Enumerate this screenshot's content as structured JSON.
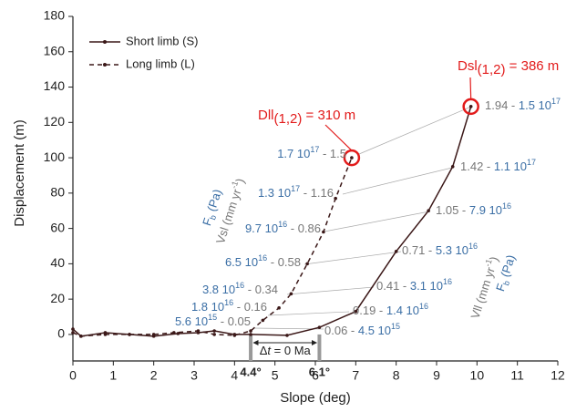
{
  "chart_data": {
    "type": "line",
    "x_label": "Slope (deg)",
    "y_label": "Displacement (m)",
    "xlim": [
      0,
      12
    ],
    "ylim": [
      -15,
      180
    ],
    "xticks": [
      0,
      1,
      2,
      3,
      4,
      5,
      6,
      7,
      8,
      9,
      10,
      11,
      12
    ],
    "yticks": [
      0,
      20,
      40,
      60,
      80,
      100,
      120,
      140,
      160,
      180
    ],
    "legend": "upper left",
    "series": [
      {
        "name": "Short limb (S)",
        "color": "#3b1818",
        "dashed": false,
        "x": [
          0,
          0.2,
          0.8,
          1.4,
          2.0,
          2.6,
          3.1,
          3.5,
          4.0,
          4.4,
          5.3,
          6.1,
          7.0,
          8.0,
          8.8,
          9.4,
          9.85
        ],
        "values": [
          3,
          -1,
          1,
          0,
          -1,
          0.5,
          1,
          2,
          0,
          0,
          -0.5,
          4,
          13,
          47,
          70,
          95,
          129
        ]
      },
      {
        "name": "Long limb (L)",
        "color": "#3b1818",
        "dashed": true,
        "x": [
          0,
          0.2,
          0.8,
          1.4,
          2.0,
          2.5,
          3.1,
          3.5,
          4.0,
          4.4,
          4.7,
          5.1,
          5.4,
          5.8,
          6.2,
          6.5,
          6.9
        ],
        "values": [
          1,
          -1,
          0,
          0,
          0,
          1,
          2,
          0,
          -0.5,
          2,
          8,
          15,
          23,
          40,
          58,
          77,
          100
        ]
      }
    ],
    "short_limb_labels": [
      {
        "velocity": "0.06",
        "separator": " - ",
        "force": "4.5 10",
        "exponent": "15"
      },
      {
        "velocity": "0.19",
        "separator": " - ",
        "force": "1.4 10",
        "exponent": "16"
      },
      {
        "velocity": "0.41",
        "separator": " - ",
        "force": "3.1 10",
        "exponent": "16"
      },
      {
        "velocity": "0.71",
        "separator": " - ",
        "force": "5.3 10",
        "exponent": "16"
      },
      {
        "velocity": "1.05",
        "separator": " - ",
        "force": "7.9 10",
        "exponent": "16"
      },
      {
        "velocity": "1.42",
        "separator": " - ",
        "force": "1.1 10",
        "exponent": "17"
      },
      {
        "velocity": "1.94",
        "separator": " - ",
        "force": "1.5 10",
        "exponent": "17"
      }
    ],
    "long_limb_labels": [
      {
        "force": "5.6 10",
        "exponent": "15",
        "separator": " - ",
        "velocity": "0.05"
      },
      {
        "force": "1.8 10",
        "exponent": "16",
        "separator": " - ",
        "velocity": "0.16"
      },
      {
        "force": "3.8 10",
        "exponent": "16",
        "separator": " - ",
        "velocity": "0.34"
      },
      {
        "force": "6.5 10",
        "exponent": "16",
        "separator": " - ",
        "velocity": "0.58"
      },
      {
        "force": "9.7 10",
        "exponent": "16",
        "separator": " - ",
        "velocity": "0.86"
      },
      {
        "force": "1.3 10",
        "exponent": "17",
        "separator": " - ",
        "velocity": "1.16"
      },
      {
        "force": "1.7 10",
        "exponent": "17",
        "separator": " - ",
        "velocity": "1.5"
      }
    ],
    "rotated_labels": {
      "left_force": {
        "main": "F",
        "sub": "b",
        "rest": " (Pa)"
      },
      "left_velocity": {
        "main": "Vsl (mm yr",
        "sup": "-1",
        "rest": ")"
      },
      "right_velocity": {
        "main": "Vll (mm yr",
        "sup": "-1",
        "rest": ")"
      },
      "right_force": {
        "main": "F",
        "sub": "b",
        "rest": " (Pa)"
      }
    },
    "callouts": [
      {
        "main": "Dll",
        "sub": "(1,2)",
        "rest": " = 310 m"
      },
      {
        "main": "Dsl",
        "sub": "(1,2)",
        "rest": " = 386 m"
      }
    ],
    "markers": [
      {
        "value": 4.4,
        "label": "4.4°"
      },
      {
        "value": 6.1,
        "label": "6.1°"
      }
    ],
    "delta_t": {
      "delta": "Δ",
      "t": "t",
      "rest": " = 0 Ma"
    }
  }
}
